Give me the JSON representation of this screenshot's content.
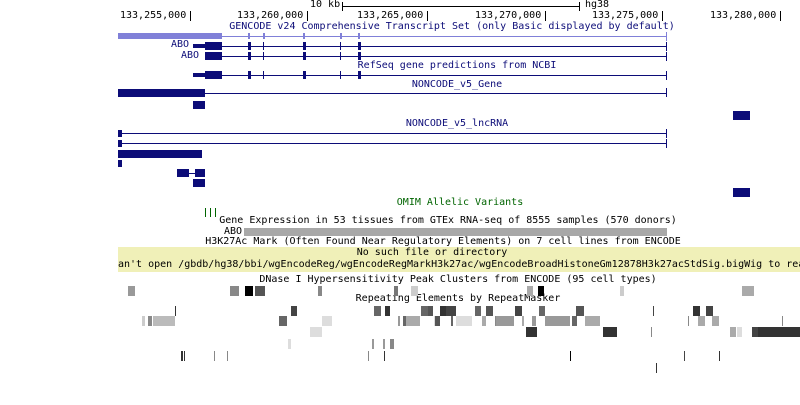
{
  "ruler": {
    "scale_label": "10 kb",
    "assembly": "hg38",
    "positions": [
      "133,255,000",
      "133,260,000",
      "133,265,000",
      "133,270,000",
      "133,275,000",
      "133,280,000"
    ]
  },
  "tracks": {
    "gencode": {
      "title": "GENCODE v24 Comprehensive Transcript Set (only Basic displayed by default)",
      "gene_labels": [
        "ABO",
        "ABO"
      ]
    },
    "refseq": {
      "title": "RefSeq gene predictions from NCBI"
    },
    "noncode_gene": {
      "title": "NONCODE_v5_Gene"
    },
    "noncode_lncrna": {
      "title": "NONCODE_v5_lncRNA"
    },
    "omim": {
      "title": "OMIM Allelic Variants"
    },
    "gtex": {
      "title": "Gene Expression in 53 tissues from GTEx RNA-seq of 8555 samples (570 donors)",
      "gene_label": "ABO"
    },
    "h3k27ac": {
      "title": "H3K27Ac Mark (Often Found Near Regulatory Elements) on 7 cell lines from ENCODE",
      "error_line1": "No such file or directory",
      "error_line2": "an't open /gbdb/hg38/bbi/wgEncodeReg/wgEncodeRegMarkH3k27ac/wgEncodeBroadHistoneGm12878H3k27acStdSig.bigWig to rea"
    },
    "dnase": {
      "title": "DNase I Hypersensitivity Peak Clusters from ENCODE (95 cell types)"
    },
    "rmsk": {
      "title": "Repeating Elements by RepeatMasker"
    }
  },
  "colors": {
    "gene": "#0c0c78",
    "gencode_light": "#8080d8",
    "omim": "#006400",
    "error_bg": "#f0f0b8",
    "gtex_bar": "#a8a8a8"
  }
}
